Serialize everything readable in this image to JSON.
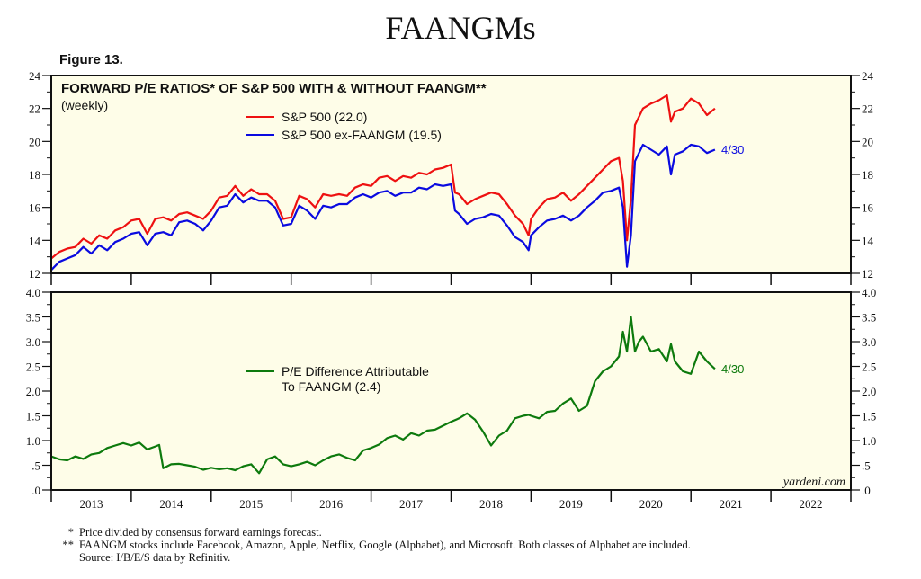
{
  "header": {
    "title": "FAANGMs",
    "figure_label": "Figure 13."
  },
  "colors": {
    "sp500": "#ee1111",
    "ex_faangm": "#0a0ae0",
    "difference": "#0d7a0d",
    "plot_bg": "#fefde8"
  },
  "chart_data": [
    {
      "type": "line",
      "title": "FORWARD P/E RATIOS* OF S&P 500 WITH & WITHOUT FAANGM**",
      "subtitle": "(weekly)",
      "xlabel": "",
      "ylabel": "",
      "xlim": [
        2013,
        2023
      ],
      "ylim": [
        12,
        24
      ],
      "yticks": [
        "12",
        "14",
        "16",
        "18",
        "20",
        "22",
        "24"
      ],
      "xtick_labels": [
        "2013",
        "2014",
        "2015",
        "2016",
        "2017",
        "2018",
        "2019",
        "2020",
        "2021",
        "2022"
      ],
      "legend_position": "top-center",
      "end_annotation": "4/30",
      "series": [
        {
          "name": "S&P 500 (22.0)",
          "key": "sp500",
          "x": [
            2013.0,
            2013.1,
            2013.2,
            2013.3,
            2013.4,
            2013.5,
            2013.6,
            2013.7,
            2013.8,
            2013.9,
            2014.0,
            2014.1,
            2014.2,
            2014.3,
            2014.4,
            2014.5,
            2014.6,
            2014.7,
            2014.8,
            2014.9,
            2015.0,
            2015.1,
            2015.2,
            2015.3,
            2015.4,
            2015.5,
            2015.6,
            2015.7,
            2015.8,
            2015.9,
            2016.0,
            2016.1,
            2016.2,
            2016.3,
            2016.4,
            2016.5,
            2016.6,
            2016.7,
            2016.8,
            2016.9,
            2017.0,
            2017.1,
            2017.2,
            2017.3,
            2017.4,
            2017.5,
            2017.6,
            2017.7,
            2017.8,
            2017.9,
            2018.0,
            2018.05,
            2018.1,
            2018.2,
            2018.3,
            2018.4,
            2018.5,
            2018.6,
            2018.7,
            2018.8,
            2018.9,
            2018.97,
            2019.0,
            2019.1,
            2019.2,
            2019.3,
            2019.4,
            2019.5,
            2019.6,
            2019.7,
            2019.8,
            2019.9,
            2020.0,
            2020.1,
            2020.15,
            2020.2,
            2020.25,
            2020.3,
            2020.4,
            2020.5,
            2020.6,
            2020.7,
            2020.75,
            2020.8,
            2020.9,
            2021.0,
            2021.1,
            2021.2,
            2021.3
          ],
          "y": [
            12.9,
            13.3,
            13.5,
            13.6,
            14.1,
            13.8,
            14.3,
            14.1,
            14.6,
            14.8,
            15.2,
            15.3,
            14.4,
            15.3,
            15.4,
            15.2,
            15.6,
            15.7,
            15.5,
            15.3,
            15.8,
            16.6,
            16.7,
            17.3,
            16.7,
            17.1,
            16.8,
            16.8,
            16.4,
            15.3,
            15.4,
            16.7,
            16.5,
            16.0,
            16.8,
            16.7,
            16.8,
            16.7,
            17.2,
            17.4,
            17.3,
            17.8,
            17.9,
            17.6,
            17.9,
            17.8,
            18.1,
            18.0,
            18.3,
            18.4,
            18.6,
            16.9,
            16.8,
            16.2,
            16.5,
            16.7,
            16.9,
            16.8,
            16.2,
            15.5,
            15.0,
            14.3,
            15.3,
            16.0,
            16.5,
            16.6,
            16.9,
            16.4,
            16.8,
            17.3,
            17.8,
            18.3,
            18.8,
            19.0,
            17.6,
            14.0,
            16.5,
            21.0,
            22.0,
            22.3,
            22.5,
            22.8,
            21.2,
            21.8,
            22.0,
            22.6,
            22.3,
            21.6,
            22.0
          ]
        },
        {
          "name": "S&P 500 ex-FAANGM (19.5)",
          "key": "ex_faangm",
          "x": [
            2013.0,
            2013.1,
            2013.2,
            2013.3,
            2013.4,
            2013.5,
            2013.6,
            2013.7,
            2013.8,
            2013.9,
            2014.0,
            2014.1,
            2014.2,
            2014.3,
            2014.4,
            2014.5,
            2014.6,
            2014.7,
            2014.8,
            2014.9,
            2015.0,
            2015.1,
            2015.2,
            2015.3,
            2015.4,
            2015.5,
            2015.6,
            2015.7,
            2015.8,
            2015.9,
            2016.0,
            2016.1,
            2016.2,
            2016.3,
            2016.4,
            2016.5,
            2016.6,
            2016.7,
            2016.8,
            2016.9,
            2017.0,
            2017.1,
            2017.2,
            2017.3,
            2017.4,
            2017.5,
            2017.6,
            2017.7,
            2017.8,
            2017.9,
            2018.0,
            2018.05,
            2018.1,
            2018.2,
            2018.3,
            2018.4,
            2018.5,
            2018.6,
            2018.7,
            2018.8,
            2018.9,
            2018.97,
            2019.0,
            2019.1,
            2019.2,
            2019.3,
            2019.4,
            2019.5,
            2019.6,
            2019.7,
            2019.8,
            2019.9,
            2020.0,
            2020.1,
            2020.15,
            2020.2,
            2020.25,
            2020.3,
            2020.4,
            2020.5,
            2020.6,
            2020.7,
            2020.75,
            2020.8,
            2020.9,
            2021.0,
            2021.1,
            2021.2,
            2021.3
          ],
          "y": [
            12.2,
            12.7,
            12.9,
            13.1,
            13.6,
            13.2,
            13.7,
            13.4,
            13.9,
            14.1,
            14.4,
            14.5,
            13.7,
            14.4,
            14.5,
            14.3,
            15.1,
            15.2,
            15.0,
            14.6,
            15.2,
            16.0,
            16.1,
            16.8,
            16.3,
            16.6,
            16.4,
            16.4,
            16.0,
            14.9,
            15.0,
            16.1,
            15.8,
            15.3,
            16.1,
            16.0,
            16.2,
            16.2,
            16.6,
            16.8,
            16.6,
            16.9,
            17.0,
            16.7,
            16.9,
            16.9,
            17.2,
            17.1,
            17.4,
            17.3,
            17.4,
            15.8,
            15.6,
            15.0,
            15.3,
            15.4,
            15.6,
            15.5,
            14.9,
            14.2,
            13.9,
            13.4,
            14.3,
            14.8,
            15.2,
            15.3,
            15.5,
            15.2,
            15.5,
            16.0,
            16.4,
            16.9,
            17.0,
            17.2,
            16.0,
            12.4,
            14.3,
            18.8,
            19.8,
            19.5,
            19.2,
            19.7,
            18.0,
            19.2,
            19.4,
            19.8,
            19.7,
            19.3,
            19.5
          ]
        }
      ]
    },
    {
      "type": "line",
      "title": "",
      "xlabel": "",
      "ylabel": "",
      "xlim": [
        2013,
        2023
      ],
      "ylim": [
        0,
        4
      ],
      "yticks": [
        ".0",
        ".5",
        "1.0",
        "1.5",
        "2.0",
        "2.5",
        "3.0",
        "3.5",
        "4.0"
      ],
      "xtick_labels": [
        "2013",
        "2014",
        "2015",
        "2016",
        "2017",
        "2018",
        "2019",
        "2020",
        "2021",
        "2022"
      ],
      "legend_position": "center-left",
      "end_annotation": "4/30",
      "watermark": "yardeni.com",
      "series": [
        {
          "name_line1": "P/E Difference Attributable",
          "name_line2": "To FAANGM (2.4)",
          "key": "difference",
          "x": [
            2013.0,
            2013.1,
            2013.2,
            2013.3,
            2013.4,
            2013.5,
            2013.6,
            2013.7,
            2013.8,
            2013.9,
            2014.0,
            2014.1,
            2014.2,
            2014.3,
            2014.35,
            2014.4,
            2014.5,
            2014.6,
            2014.7,
            2014.8,
            2014.9,
            2015.0,
            2015.1,
            2015.2,
            2015.3,
            2015.4,
            2015.5,
            2015.6,
            2015.7,
            2015.8,
            2015.9,
            2016.0,
            2016.1,
            2016.2,
            2016.3,
            2016.4,
            2016.5,
            2016.6,
            2016.7,
            2016.8,
            2016.9,
            2017.0,
            2017.1,
            2017.2,
            2017.3,
            2017.4,
            2017.5,
            2017.6,
            2017.7,
            2017.8,
            2017.9,
            2018.0,
            2018.1,
            2018.2,
            2018.3,
            2018.4,
            2018.5,
            2018.6,
            2018.7,
            2018.8,
            2018.9,
            2018.97,
            2019.0,
            2019.1,
            2019.2,
            2019.3,
            2019.4,
            2019.5,
            2019.6,
            2019.7,
            2019.8,
            2019.9,
            2020.0,
            2020.1,
            2020.15,
            2020.2,
            2020.25,
            2020.3,
            2020.35,
            2020.4,
            2020.5,
            2020.6,
            2020.7,
            2020.75,
            2020.8,
            2020.9,
            2021.0,
            2021.1,
            2021.2,
            2021.3
          ],
          "y": [
            0.68,
            0.62,
            0.6,
            0.68,
            0.63,
            0.72,
            0.75,
            0.85,
            0.9,
            0.95,
            0.9,
            0.96,
            0.82,
            0.88,
            0.91,
            0.44,
            0.52,
            0.53,
            0.5,
            0.47,
            0.41,
            0.45,
            0.42,
            0.44,
            0.4,
            0.48,
            0.52,
            0.34,
            0.62,
            0.68,
            0.52,
            0.48,
            0.52,
            0.57,
            0.5,
            0.6,
            0.68,
            0.72,
            0.65,
            0.6,
            0.8,
            0.85,
            0.92,
            1.05,
            1.1,
            1.02,
            1.15,
            1.1,
            1.2,
            1.22,
            1.3,
            1.38,
            1.45,
            1.55,
            1.42,
            1.18,
            0.9,
            1.1,
            1.2,
            1.45,
            1.5,
            1.52,
            1.5,
            1.45,
            1.58,
            1.6,
            1.75,
            1.85,
            1.6,
            1.7,
            2.2,
            2.4,
            2.5,
            2.7,
            3.2,
            2.8,
            3.5,
            2.8,
            3.0,
            3.1,
            2.8,
            2.85,
            2.6,
            2.95,
            2.6,
            2.4,
            2.35,
            2.8,
            2.6,
            2.45
          ]
        }
      ]
    }
  ],
  "footnotes": [
    {
      "mark": "*",
      "text": "Price divided by consensus forward earnings forecast."
    },
    {
      "mark": "**",
      "text": "FAANGM stocks include Facebook, Amazon, Apple, Netflix, Google (Alphabet), and Microsoft. Both classes of Alphabet are included."
    },
    {
      "mark": "",
      "text": "Source: I/B/E/S data by Refinitiv."
    }
  ]
}
